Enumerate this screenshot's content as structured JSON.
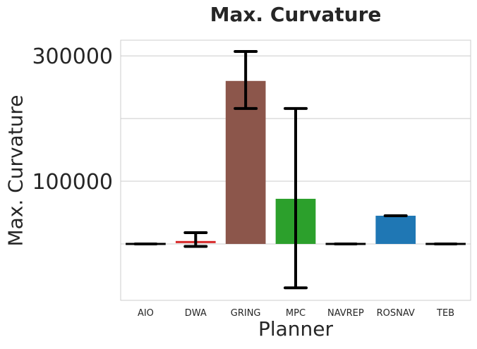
{
  "chart_data": {
    "type": "bar",
    "title": "Max. Curvature",
    "xlabel": "Planner",
    "ylabel": "Max. Curvature",
    "categories": [
      "AIO",
      "DWA",
      "GRING",
      "MPC",
      "NAVREP",
      "ROSNAV",
      "TEB"
    ],
    "values": [
      0,
      3000,
      260000,
      72000,
      0,
      45000,
      0
    ],
    "error_low": [
      0,
      -4000,
      216000,
      -70000,
      0,
      45000,
      0
    ],
    "error_high": [
      0,
      18000,
      307000,
      216000,
      0,
      45000,
      0
    ],
    "colors": [
      "#000000",
      "#d62728",
      "#8c564b",
      "#2ca02c",
      "#000000",
      "#1f77b4",
      "#000000"
    ],
    "ylim": [
      -90000,
      325000
    ],
    "yticks": [
      300000,
      100000
    ],
    "ytick_labels": [
      "300000",
      "100000"
    ],
    "gridlines": [
      0,
      100000,
      200000,
      300000
    ],
    "grid": true,
    "legend": "none"
  }
}
